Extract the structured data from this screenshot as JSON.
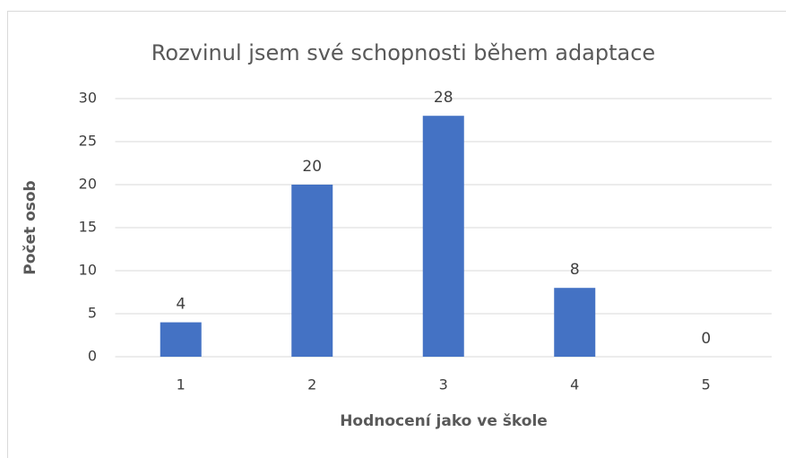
{
  "chart_data": {
    "type": "bar",
    "title": "Rozvinul jsem své schopnosti během adaptace",
    "x_label": "Hodnocení jako ve škole",
    "y_label": "Počet osob",
    "categories": [
      "1",
      "2",
      "3",
      "4",
      "5"
    ],
    "values": [
      4,
      20,
      28,
      8,
      0
    ],
    "color": "#4472c4",
    "ylim": [
      0,
      30
    ],
    "yticks": [
      0,
      5,
      10,
      15,
      20,
      25,
      30
    ],
    "grid": true
  }
}
